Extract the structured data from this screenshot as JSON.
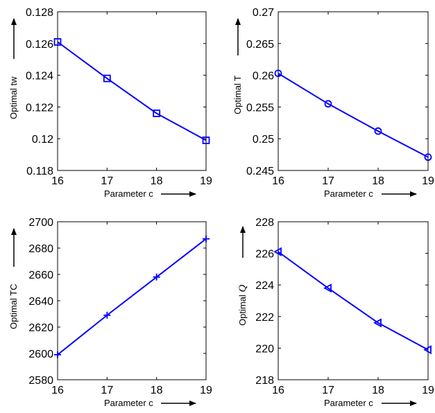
{
  "chart_data": [
    {
      "type": "line",
      "xlabel": "Parameter c",
      "ylabel_text": "Optimal ",
      "ylabel_symbol": "tw",
      "xlim": [
        16,
        19
      ],
      "ylim": [
        0.118,
        0.128
      ],
      "xticks": [
        16,
        17,
        18,
        19
      ],
      "yticks": [
        0.118,
        0.12,
        0.122,
        0.124,
        0.126,
        0.128
      ],
      "ytick_labels": [
        "0.118",
        "0.12",
        "0.122",
        "0.124",
        "0.126",
        "0.128"
      ],
      "marker": "square",
      "color": "#0000ff",
      "grid": false,
      "x": [
        16,
        17,
        18,
        19
      ],
      "values": [
        0.1261,
        0.1238,
        0.1216,
        0.1199
      ]
    },
    {
      "type": "line",
      "xlabel": "Parameter c",
      "ylabel_text": "Optimal ",
      "ylabel_symbol": "T",
      "xlim": [
        16,
        19
      ],
      "ylim": [
        0.245,
        0.27
      ],
      "xticks": [
        16,
        17,
        18,
        19
      ],
      "yticks": [
        0.245,
        0.25,
        0.255,
        0.26,
        0.265,
        0.27
      ],
      "ytick_labels": [
        "0.245",
        "0.25",
        "0.255",
        "0.26",
        "0.265",
        "0.27"
      ],
      "marker": "circle",
      "color": "#0000ff",
      "grid": false,
      "x": [
        16,
        17,
        18,
        19
      ],
      "values": [
        0.2603,
        0.2555,
        0.2512,
        0.2471
      ]
    },
    {
      "type": "line",
      "xlabel": "Parameter c",
      "ylabel_text": "Optimal TC",
      "ylabel_symbol": "",
      "xlim": [
        16,
        19
      ],
      "ylim": [
        2580,
        2700
      ],
      "xticks": [
        16,
        17,
        18,
        19
      ],
      "yticks": [
        2580,
        2600,
        2620,
        2640,
        2660,
        2680,
        2700
      ],
      "ytick_labels": [
        "2580",
        "2600",
        "2620",
        "2640",
        "2660",
        "2680",
        "2700"
      ],
      "marker": "plus",
      "color": "#0000ff",
      "grid": false,
      "x": [
        16,
        17,
        18,
        19
      ],
      "values": [
        2599,
        2629,
        2658,
        2687
      ]
    },
    {
      "type": "line",
      "xlabel": "Parameter c",
      "ylabel_text": "Optimal ",
      "ylabel_symbol": "Q",
      "xlim": [
        16,
        19
      ],
      "ylim": [
        218,
        228
      ],
      "xticks": [
        16,
        17,
        18,
        19
      ],
      "yticks": [
        218,
        220,
        222,
        224,
        226,
        228
      ],
      "ytick_labels": [
        "218",
        "220",
        "222",
        "224",
        "226",
        "228"
      ],
      "marker": "triangle-left",
      "color": "#0000ff",
      "grid": false,
      "x": [
        16,
        17,
        18,
        19
      ],
      "values": [
        226.1,
        223.8,
        221.6,
        219.9
      ]
    }
  ]
}
